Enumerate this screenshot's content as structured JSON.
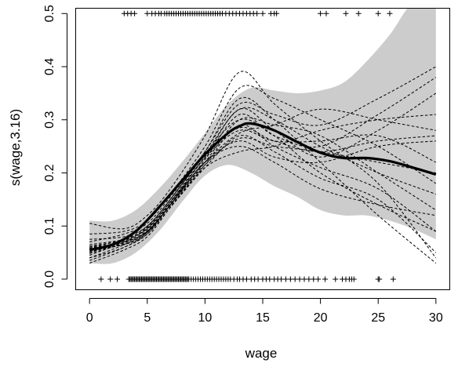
{
  "chart_data": {
    "type": "line",
    "xlabel": "wage",
    "ylabel": "s(wage,3.16)",
    "xlim": [
      -1.2,
      31.2
    ],
    "ylim": [
      -0.02,
      0.51
    ],
    "x_ticks": [
      0,
      5,
      10,
      15,
      20,
      25,
      30
    ],
    "y_ticks": [
      0.0,
      0.1,
      0.2,
      0.3,
      0.4,
      0.5
    ],
    "x_tick_labels": [
      "0",
      "5",
      "10",
      "15",
      "20",
      "25",
      "30"
    ],
    "y_tick_labels": [
      "0.0",
      "0.1",
      "0.2",
      "0.3",
      "0.4",
      "0.5"
    ],
    "grid": false,
    "fit": {
      "x": [
        0,
        2,
        4,
        6,
        8,
        10,
        12,
        13,
        14,
        16,
        18,
        20,
        22,
        24,
        26,
        28,
        30
      ],
      "y": [
        0.055,
        0.065,
        0.09,
        0.135,
        0.185,
        0.235,
        0.275,
        0.288,
        0.293,
        0.28,
        0.258,
        0.238,
        0.228,
        0.228,
        0.222,
        0.21,
        0.197
      ]
    },
    "confidence_band": {
      "x": [
        0,
        2,
        4,
        6,
        8,
        10,
        12,
        14,
        16,
        18,
        20,
        22,
        24,
        26,
        28,
        30
      ],
      "upper": [
        0.11,
        0.11,
        0.13,
        0.17,
        0.22,
        0.275,
        0.33,
        0.36,
        0.355,
        0.35,
        0.355,
        0.37,
        0.41,
        0.46,
        0.52,
        0.52
      ],
      "lower": [
        0.03,
        0.03,
        0.05,
        0.09,
        0.145,
        0.195,
        0.215,
        0.2,
        0.175,
        0.155,
        0.13,
        0.12,
        0.12,
        0.11,
        0.095,
        0.075
      ]
    },
    "simulated_curves": {
      "x": [
        0,
        3,
        5,
        7,
        10,
        13,
        16,
        20,
        25,
        30
      ],
      "curves": [
        [
          0.105,
          0.095,
          0.12,
          0.17,
          0.27,
          0.39,
          0.33,
          0.26,
          0.18,
          0.04
        ],
        [
          0.085,
          0.09,
          0.11,
          0.16,
          0.25,
          0.36,
          0.34,
          0.3,
          0.25,
          0.18
        ],
        [
          0.07,
          0.085,
          0.105,
          0.155,
          0.24,
          0.34,
          0.3,
          0.22,
          0.12,
          0.03
        ],
        [
          0.06,
          0.075,
          0.1,
          0.15,
          0.24,
          0.33,
          0.31,
          0.29,
          0.34,
          0.4
        ],
        [
          0.045,
          0.07,
          0.095,
          0.145,
          0.23,
          0.32,
          0.28,
          0.23,
          0.28,
          0.35
        ],
        [
          0.04,
          0.065,
          0.09,
          0.14,
          0.225,
          0.31,
          0.27,
          0.25,
          0.31,
          0.38
        ],
        [
          0.035,
          0.06,
          0.085,
          0.14,
          0.22,
          0.3,
          0.29,
          0.27,
          0.2,
          0.13
        ],
        [
          0.03,
          0.055,
          0.08,
          0.135,
          0.215,
          0.29,
          0.25,
          0.21,
          0.17,
          0.09
        ],
        [
          0.05,
          0.07,
          0.09,
          0.14,
          0.23,
          0.285,
          0.26,
          0.24,
          0.26,
          0.27
        ],
        [
          0.065,
          0.075,
          0.095,
          0.145,
          0.22,
          0.275,
          0.29,
          0.32,
          0.3,
          0.28
        ],
        [
          0.055,
          0.065,
          0.085,
          0.135,
          0.21,
          0.27,
          0.24,
          0.19,
          0.15,
          0.05
        ],
        [
          0.06,
          0.07,
          0.09,
          0.14,
          0.215,
          0.265,
          0.25,
          0.24,
          0.22,
          0.2
        ],
        [
          0.048,
          0.068,
          0.092,
          0.142,
          0.22,
          0.26,
          0.23,
          0.22,
          0.25,
          0.26
        ],
        [
          0.075,
          0.08,
          0.1,
          0.15,
          0.235,
          0.3,
          0.27,
          0.2,
          0.14,
          0.09
        ],
        [
          0.04,
          0.06,
          0.088,
          0.14,
          0.22,
          0.25,
          0.22,
          0.17,
          0.14,
          0.12
        ],
        [
          0.058,
          0.072,
          0.098,
          0.15,
          0.235,
          0.32,
          0.3,
          0.25,
          0.2,
          0.16
        ],
        [
          0.052,
          0.066,
          0.088,
          0.138,
          0.21,
          0.24,
          0.25,
          0.28,
          0.3,
          0.31
        ],
        [
          0.062,
          0.074,
          0.096,
          0.146,
          0.228,
          0.28,
          0.26,
          0.26,
          0.27,
          0.22
        ]
      ]
    },
    "rug_bottom_x": [
      1,
      1.8,
      2.4,
      3.4,
      3.5,
      3.6,
      3.7,
      3.8,
      3.9,
      4.0,
      4.1,
      4.2,
      4.3,
      4.4,
      4.5,
      4.6,
      4.7,
      4.8,
      4.9,
      5.0,
      5.1,
      5.2,
      5.3,
      5.4,
      5.5,
      5.6,
      5.7,
      5.8,
      5.9,
      6.0,
      6.1,
      6.2,
      6.3,
      6.4,
      6.5,
      6.6,
      6.7,
      6.8,
      6.9,
      7.0,
      7.1,
      7.2,
      7.3,
      7.4,
      7.5,
      7.6,
      7.7,
      7.8,
      7.9,
      8.0,
      8.1,
      8.2,
      8.3,
      8.4,
      8.5,
      8.6,
      8.8,
      9.0,
      9.2,
      9.4,
      9.6,
      9.8,
      10.0,
      10.2,
      10.4,
      10.6,
      10.8,
      11.0,
      11.2,
      11.4,
      11.6,
      11.8,
      12.0,
      12.2,
      12.5,
      12.8,
      13.0,
      13.3,
      13.6,
      14.0,
      14.3,
      14.6,
      15.0,
      15.3,
      15.6,
      16.0,
      16.3,
      16.6,
      17.0,
      17.4,
      17.8,
      18.2,
      18.6,
      19.0,
      19.4,
      19.8,
      20.4,
      21.3,
      21.9,
      22.2,
      22.5,
      22.7,
      22.9,
      25.0,
      25.1,
      26.3
    ],
    "rug_top_x": [
      3.0,
      3.3,
      3.6,
      3.9,
      5.0,
      5.4,
      5.7,
      6.0,
      6.2,
      6.5,
      6.7,
      6.9,
      7.1,
      7.3,
      7.5,
      7.7,
      7.9,
      8.1,
      8.3,
      8.5,
      8.7,
      8.9,
      9.1,
      9.3,
      9.5,
      9.7,
      9.9,
      10.1,
      10.3,
      10.5,
      10.7,
      10.9,
      11.1,
      11.3,
      11.5,
      11.8,
      12.1,
      12.4,
      12.7,
      13.0,
      13.3,
      13.6,
      13.9,
      14.2,
      14.5,
      15.0,
      15.7,
      16.0,
      16.2,
      20.0,
      20.5,
      22.2,
      23.3,
      25.0,
      26.0
    ]
  }
}
